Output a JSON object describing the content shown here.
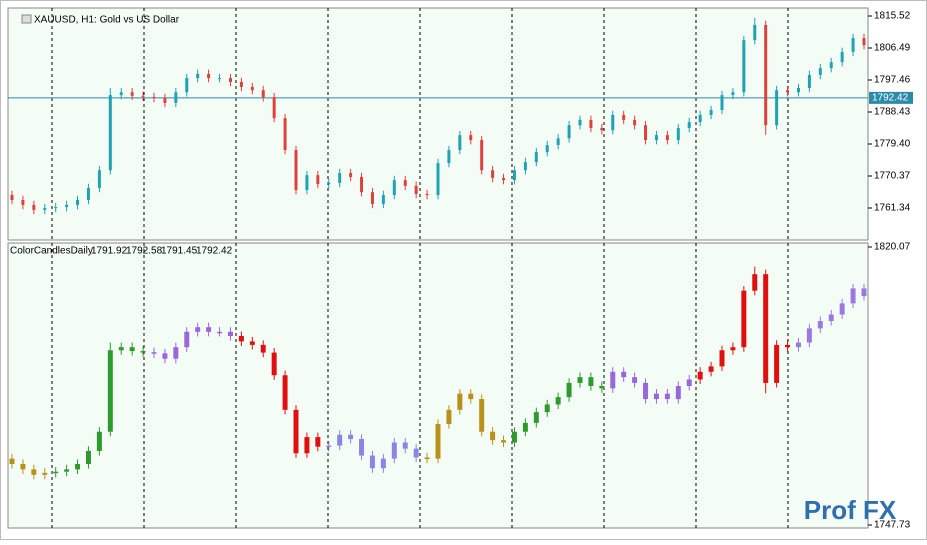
{
  "chart_data": {
    "type": "candlestick",
    "title": "XAUUSD, H1: Gold vs US Dollar",
    "open": [
      1765.0,
      1763.6,
      1762.2,
      1760.8,
      1761.3,
      1761.6,
      1762.2,
      1763.6,
      1767.0,
      1772.0,
      1793.2,
      1794.0,
      1793.0,
      1792.7,
      1792.4,
      1791.0,
      1794.0,
      1798.0,
      1799.2,
      1798.0,
      1798.0,
      1796.9,
      1795.5,
      1794.6,
      1792.6,
      1786.7,
      1777.7,
      1766.4,
      1770.6,
      1768.1,
      1768.4,
      1771.2,
      1770.1,
      1765.8,
      1762.5,
      1765.0,
      1769.2,
      1767.6,
      1765.3,
      1765.0,
      1774.0,
      1777.7,
      1781.9,
      1780.5,
      1772.0,
      1769.8,
      1769.2,
      1772.0,
      1774.3,
      1777.1,
      1779.1,
      1781.0,
      1784.7,
      1786.2,
      1783.9,
      1783.3,
      1787.6,
      1786.2,
      1784.7,
      1780.5,
      1781.9,
      1780.5,
      1783.9,
      1785.6,
      1787.6,
      1789.0,
      1793.2,
      1794.0,
      1808.7,
      1813.0,
      1784.7,
      1794.6,
      1794.0,
      1795.2,
      1798.9,
      1800.8,
      1802.5,
      1805.4,
      1809.3
    ],
    "high": [
      1766.2,
      1764.8,
      1763.4,
      1762.5,
      1762.8,
      1763.4,
      1764.8,
      1768.2,
      1773.2,
      1795.2,
      1795.2,
      1795.2,
      1794.2,
      1793.9,
      1793.6,
      1795.2,
      1799.2,
      1800.4,
      1800.4,
      1799.2,
      1799.2,
      1798.1,
      1796.7,
      1795.8,
      1793.8,
      1787.9,
      1778.9,
      1771.8,
      1771.8,
      1769.6,
      1772.4,
      1772.4,
      1771.3,
      1767.0,
      1766.2,
      1770.4,
      1770.4,
      1768.8,
      1766.5,
      1775.2,
      1778.9,
      1783.1,
      1783.1,
      1781.7,
      1773.2,
      1771.0,
      1773.2,
      1775.5,
      1778.3,
      1780.3,
      1782.2,
      1785.9,
      1787.4,
      1787.4,
      1785.1,
      1788.8,
      1788.8,
      1787.4,
      1785.9,
      1783.1,
      1783.1,
      1785.1,
      1786.8,
      1788.8,
      1790.2,
      1794.4,
      1795.2,
      1809.9,
      1815.0,
      1814.2,
      1795.8,
      1795.8,
      1796.4,
      1800.1,
      1802.0,
      1803.7,
      1806.6,
      1810.5,
      1810.5
    ],
    "low": [
      1762.4,
      1761.0,
      1759.6,
      1759.6,
      1760.1,
      1760.4,
      1761.0,
      1762.4,
      1765.8,
      1770.8,
      1792.0,
      1791.8,
      1791.5,
      1791.2,
      1789.8,
      1789.8,
      1792.8,
      1796.8,
      1796.8,
      1796.8,
      1795.7,
      1794.3,
      1793.4,
      1791.4,
      1785.5,
      1776.5,
      1765.2,
      1765.2,
      1766.9,
      1766.9,
      1767.2,
      1768.9,
      1764.6,
      1761.3,
      1761.3,
      1763.8,
      1766.4,
      1764.1,
      1763.8,
      1763.8,
      1772.8,
      1776.5,
      1779.3,
      1770.8,
      1768.6,
      1768.0,
      1768.0,
      1770.8,
      1773.1,
      1775.9,
      1777.9,
      1779.8,
      1783.5,
      1782.7,
      1782.1,
      1782.1,
      1785.0,
      1783.5,
      1779.3,
      1779.3,
      1779.3,
      1779.3,
      1782.7,
      1784.4,
      1786.4,
      1787.8,
      1792.0,
      1792.8,
      1807.5,
      1782.0,
      1783.5,
      1792.8,
      1792.8,
      1794.0,
      1797.7,
      1799.6,
      1801.3,
      1804.2,
      1806.1
    ],
    "close": [
      1763.6,
      1762.2,
      1760.8,
      1761.3,
      1761.6,
      1762.2,
      1763.6,
      1767.0,
      1772.0,
      1793.2,
      1794.0,
      1793.0,
      1792.7,
      1792.4,
      1791.0,
      1794.0,
      1798.0,
      1799.2,
      1798.0,
      1798.0,
      1796.9,
      1795.5,
      1794.6,
      1792.6,
      1786.7,
      1777.7,
      1766.4,
      1770.6,
      1768.1,
      1768.4,
      1771.2,
      1770.1,
      1765.8,
      1762.5,
      1765.0,
      1769.2,
      1767.6,
      1765.3,
      1765.0,
      1774.0,
      1777.7,
      1781.9,
      1780.5,
      1772.0,
      1769.8,
      1769.2,
      1772.0,
      1774.3,
      1777.1,
      1779.1,
      1781.0,
      1784.7,
      1786.2,
      1783.9,
      1783.3,
      1787.6,
      1786.2,
      1784.7,
      1780.5,
      1781.9,
      1780.5,
      1783.9,
      1785.6,
      1787.6,
      1789.0,
      1793.2,
      1794.0,
      1808.7,
      1813.0,
      1784.7,
      1794.6,
      1794.0,
      1795.2,
      1798.9,
      1800.8,
      1802.5,
      1805.4,
      1809.3,
      1807.3
    ],
    "up_color": "#1fa3b3",
    "down_color": "#e0403c",
    "ylim": [
      1752.31,
      1817.78
    ],
    "yticks": [
      1815.52,
      1806.49,
      1797.46,
      1788.43,
      {
        "value": 1779.4,
        "label": "1779.40"
      },
      1770.37,
      1761.34
    ],
    "price_line": 1792.42,
    "price_line_color": "#2a8aa8",
    "indicator": {
      "name": "ColorCandlesDaily",
      "values": [
        1791.92,
        1792.58,
        1791.45,
        1792.42
      ],
      "ylim": [
        1746.95,
        1821.11
      ],
      "yticks": [
        1820.07,
        1747.73
      ],
      "day_colors": [
        "#b8901a",
        "#2e9a2e",
        "#9966dd",
        "#e01010",
        "#8c84e0",
        "#b8901a",
        "#2e9a2e",
        "#9966dd",
        "#e01010",
        "#9a7ae0"
      ]
    },
    "watermark": "Prof FX"
  }
}
